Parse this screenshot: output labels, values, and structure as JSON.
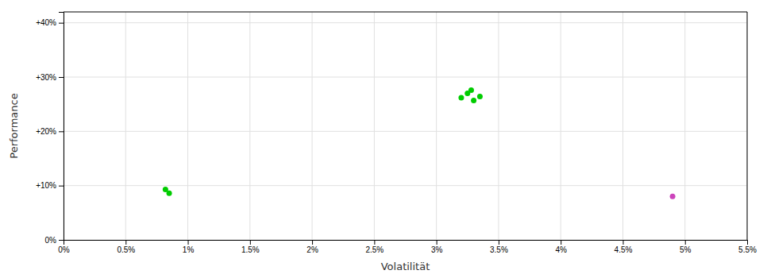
{
  "chart_data": {
    "type": "scatter",
    "xlabel": "Volatilität",
    "ylabel": "Performance",
    "xlim": [
      0.0,
      0.055
    ],
    "ylim": [
      0.0,
      0.42
    ],
    "xticks": [
      {
        "value": 0.0,
        "label": "0%"
      },
      {
        "value": 0.005,
        "label": "0.5%"
      },
      {
        "value": 0.01,
        "label": "1%"
      },
      {
        "value": 0.015,
        "label": "1.5%"
      },
      {
        "value": 0.02,
        "label": "2%"
      },
      {
        "value": 0.025,
        "label": "2.5%"
      },
      {
        "value": 0.03,
        "label": "3%"
      },
      {
        "value": 0.035,
        "label": "3.5%"
      },
      {
        "value": 0.04,
        "label": "4%"
      },
      {
        "value": 0.045,
        "label": "4.5%"
      },
      {
        "value": 0.05,
        "label": "5%"
      },
      {
        "value": 0.055,
        "label": "5.5%"
      }
    ],
    "yticks": [
      {
        "value": 0.0,
        "label": "0%"
      },
      {
        "value": 0.1,
        "label": "+10%"
      },
      {
        "value": 0.2,
        "label": "+20%"
      },
      {
        "value": 0.3,
        "label": "+30%"
      },
      {
        "value": 0.4,
        "label": "+40%"
      }
    ],
    "grid": true,
    "series": [
      {
        "color": "#00cc00",
        "x": [
          0.0082,
          0.0085,
          0.032,
          0.0325,
          0.0328,
          0.033,
          0.0335
        ],
        "values": [
          0.093,
          0.086,
          0.262,
          0.27,
          0.276,
          0.257,
          0.264
        ]
      },
      {
        "color": "#cc44bb",
        "x": [
          0.049
        ],
        "values": [
          0.08
        ]
      }
    ]
  }
}
